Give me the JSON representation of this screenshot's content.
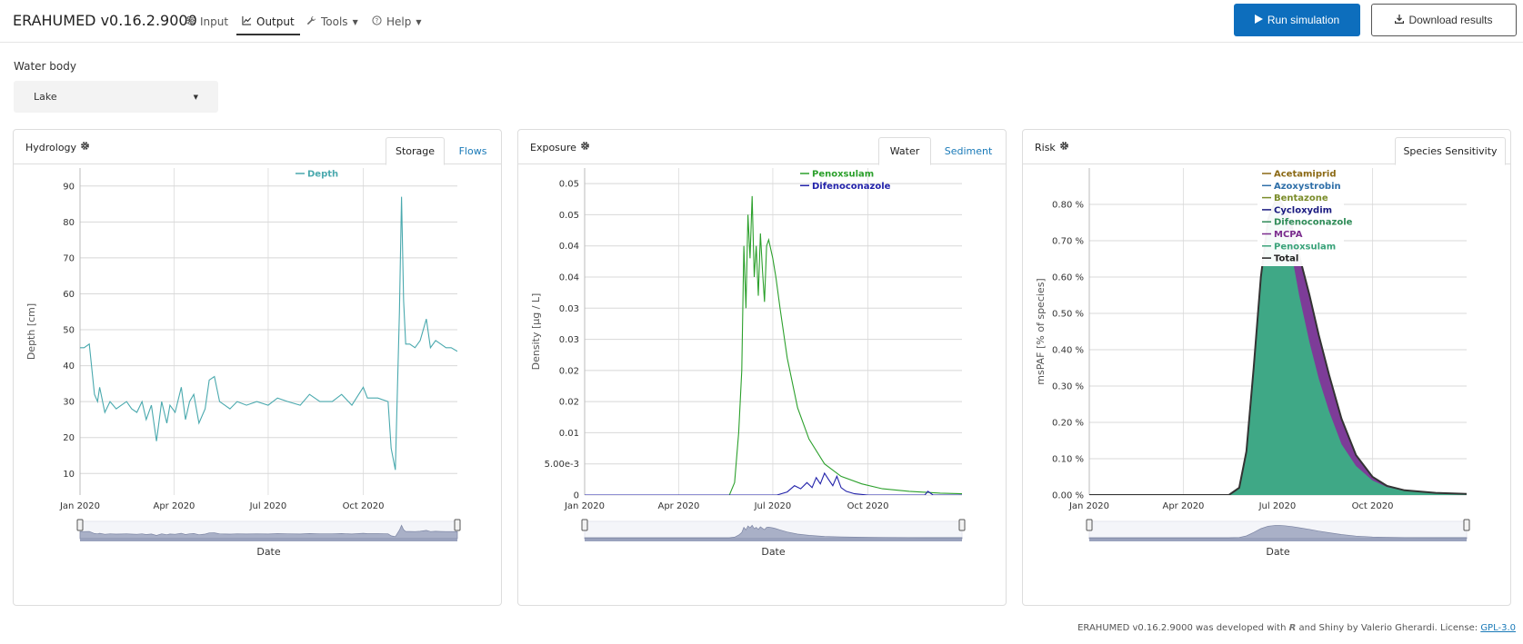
{
  "app": {
    "brand": "ERAHUMED v0.16.2.9000",
    "nav": [
      {
        "label": "Input",
        "icon": "sliders-icon"
      },
      {
        "label": "Output",
        "icon": "line-chart-icon"
      },
      {
        "label": "Tools",
        "icon": "wrench-icon"
      },
      {
        "label": "Help",
        "icon": "question-circle-icon"
      }
    ],
    "run_label": "Run simulation",
    "download_label": "Download results"
  },
  "water_body": {
    "label": "Water body",
    "value": "Lake"
  },
  "panels": {
    "hydrology": {
      "title": "Hydrology",
      "tabs": [
        "Storage",
        "Flows"
      ],
      "active_tab": "Storage"
    },
    "exposure": {
      "title": "Exposure",
      "tabs": [
        "Water",
        "Sediment"
      ],
      "active_tab": "Water"
    },
    "risk": {
      "title": "Risk",
      "tabs": [
        "Species Sensitivity"
      ],
      "active_tab": "Species Sensitivity"
    }
  },
  "chart_data": [
    {
      "type": "line",
      "xlabel": "Date",
      "ylabel": "Depth [cm]",
      "x_ticks": [
        "Jan 2020",
        "Apr 2020",
        "Jul 2020",
        "Oct 2020"
      ],
      "y_ticks": [
        10,
        20,
        30,
        40,
        50,
        60,
        70,
        80,
        90
      ],
      "xlim": [
        "2020-01-01",
        "2020-12-31"
      ],
      "ylim": [
        4,
        95
      ],
      "legend_placement": "top-center",
      "grid": true,
      "series": [
        {
          "name": "Depth",
          "color": "#4aa9ae",
          "x": [
            "2020-01-01",
            "2020-01-05",
            "2020-01-10",
            "2020-01-15",
            "2020-01-18",
            "2020-01-20",
            "2020-01-25",
            "2020-01-30",
            "2020-02-05",
            "2020-02-10",
            "2020-02-15",
            "2020-02-20",
            "2020-02-25",
            "2020-03-01",
            "2020-03-05",
            "2020-03-10",
            "2020-03-15",
            "2020-03-20",
            "2020-03-25",
            "2020-03-28",
            "2020-04-02",
            "2020-04-08",
            "2020-04-12",
            "2020-04-16",
            "2020-04-20",
            "2020-04-25",
            "2020-05-01",
            "2020-05-05",
            "2020-05-10",
            "2020-05-15",
            "2020-05-20",
            "2020-05-25",
            "2020-06-01",
            "2020-06-10",
            "2020-06-20",
            "2020-07-01",
            "2020-07-10",
            "2020-07-20",
            "2020-08-01",
            "2020-08-10",
            "2020-08-20",
            "2020-09-01",
            "2020-09-10",
            "2020-09-20",
            "2020-10-01",
            "2020-10-05",
            "2020-10-15",
            "2020-10-25",
            "2020-10-28",
            "2020-11-01",
            "2020-11-05",
            "2020-11-07",
            "2020-11-09",
            "2020-11-11",
            "2020-11-15",
            "2020-11-20",
            "2020-11-25",
            "2020-12-01",
            "2020-12-05",
            "2020-12-10",
            "2020-12-15",
            "2020-12-20",
            "2020-12-25",
            "2020-12-31"
          ],
          "y": [
            45,
            45,
            46,
            32,
            30,
            34,
            27,
            30,
            28,
            29,
            30,
            28,
            27,
            30,
            25,
            29,
            19,
            30,
            24,
            29,
            27,
            34,
            25,
            30,
            32,
            24,
            28,
            36,
            37,
            30,
            29,
            28,
            30,
            29,
            30,
            29,
            31,
            30,
            29,
            32,
            30,
            30,
            32,
            29,
            34,
            31,
            31,
            30,
            17,
            11,
            55,
            87,
            58,
            46,
            46,
            45,
            47,
            53,
            45,
            47,
            46,
            45,
            45,
            44
          ]
        }
      ]
    },
    {
      "type": "line",
      "xlabel": "Date",
      "ylabel": "Density [µg / L]",
      "x_ticks": [
        "Jan 2020",
        "Apr 2020",
        "Jul 2020",
        "Oct 2020"
      ],
      "y_ticks": [
        0,
        0.005,
        0.01,
        0.015,
        0.02,
        0.025,
        0.03,
        0.035,
        0.04,
        0.045,
        0.05
      ],
      "y_tick_labels": [
        "0",
        "5.00e-3",
        "0.01",
        "0.02",
        "0.02",
        "0.03",
        "0.03",
        "0.04",
        "0.04",
        "0.05",
        "0.05"
      ],
      "xlim": [
        "2020-01-01",
        "2020-12-31"
      ],
      "ylim": [
        0,
        0.0525
      ],
      "legend_placement": "top-right",
      "grid": true,
      "series": [
        {
          "name": "Penoxsulam",
          "color": "#2ca02c",
          "x": [
            "2020-01-01",
            "2020-05-20",
            "2020-05-25",
            "2020-05-29",
            "2020-06-01",
            "2020-06-03",
            "2020-06-05",
            "2020-06-07",
            "2020-06-09",
            "2020-06-11",
            "2020-06-13",
            "2020-06-15",
            "2020-06-17",
            "2020-06-19",
            "2020-06-21",
            "2020-06-23",
            "2020-06-25",
            "2020-06-27",
            "2020-07-01",
            "2020-07-04",
            "2020-07-08",
            "2020-07-15",
            "2020-07-25",
            "2020-08-05",
            "2020-08-20",
            "2020-09-05",
            "2020-09-25",
            "2020-10-15",
            "2020-11-10",
            "2020-12-10",
            "2020-12-31"
          ],
          "y": [
            0,
            0,
            0.002,
            0.01,
            0.02,
            0.04,
            0.03,
            0.045,
            0.038,
            0.048,
            0.035,
            0.04,
            0.032,
            0.042,
            0.036,
            0.031,
            0.04,
            0.041,
            0.038,
            0.035,
            0.03,
            0.022,
            0.014,
            0.009,
            0.005,
            0.003,
            0.0018,
            0.001,
            0.0006,
            0.0003,
            0.0002
          ]
        },
        {
          "name": "Difenoconazole",
          "color": "#2222aa",
          "x": [
            "2020-01-01",
            "2020-07-05",
            "2020-07-15",
            "2020-07-22",
            "2020-07-28",
            "2020-08-03",
            "2020-08-08",
            "2020-08-12",
            "2020-08-16",
            "2020-08-20",
            "2020-08-24",
            "2020-08-28",
            "2020-09-01",
            "2020-09-05",
            "2020-09-10",
            "2020-09-18",
            "2020-10-01",
            "2020-11-25",
            "2020-11-28",
            "2020-12-03",
            "2020-12-31"
          ],
          "y": [
            0,
            0,
            0.0005,
            0.0015,
            0.001,
            0.002,
            0.0012,
            0.0028,
            0.0018,
            0.0035,
            0.0025,
            0.0015,
            0.003,
            0.0012,
            0.0006,
            0.0002,
            0,
            0,
            0.0006,
            0,
            0
          ]
        }
      ]
    },
    {
      "type": "area",
      "xlabel": "Date",
      "ylabel": "msPAF [% of species]",
      "x_ticks": [
        "Jan 2020",
        "Apr 2020",
        "Jul 2020",
        "Oct 2020"
      ],
      "y_ticks": [
        0,
        0.1,
        0.2,
        0.3,
        0.4,
        0.5,
        0.6,
        0.7,
        0.8
      ],
      "y_tick_labels": [
        "0.00 %",
        "0.10 %",
        "0.20 %",
        "0.30 %",
        "0.40 %",
        "0.50 %",
        "0.60 %",
        "0.70 %",
        "0.80 %"
      ],
      "xlim": [
        "2020-01-01",
        "2020-12-31"
      ],
      "ylim": [
        0,
        0.9
      ],
      "legend_placement": "top-center",
      "grid": true,
      "legend": [
        {
          "name": "Acetamiprid",
          "color": "#8b6914"
        },
        {
          "name": "Azoxystrobin",
          "color": "#2f6fa8"
        },
        {
          "name": "Bentazone",
          "color": "#7a8c2a"
        },
        {
          "name": "Cycloxydim",
          "color": "#1a1a80"
        },
        {
          "name": "Difenoconazole",
          "color": "#2e8b57"
        },
        {
          "name": "MCPA",
          "color": "#7b2d8e"
        },
        {
          "name": "Penoxsulam",
          "color": "#3aa37a"
        },
        {
          "name": "Total",
          "color": "#222222"
        }
      ],
      "series": [
        {
          "name": "Penoxsulam",
          "color": "#3fa886",
          "x": [
            "2020-01-01",
            "2020-05-15",
            "2020-05-25",
            "2020-06-01",
            "2020-06-08",
            "2020-06-15",
            "2020-06-22",
            "2020-06-29",
            "2020-07-03",
            "2020-07-08",
            "2020-07-15",
            "2020-07-22",
            "2020-08-01",
            "2020-08-10",
            "2020-08-20",
            "2020-09-01",
            "2020-09-15",
            "2020-10-01",
            "2020-10-15",
            "2020-11-01",
            "2020-12-01",
            "2020-12-31"
          ],
          "y": [
            0,
            0,
            0.02,
            0.12,
            0.35,
            0.6,
            0.75,
            0.8,
            0.8,
            0.76,
            0.66,
            0.55,
            0.42,
            0.32,
            0.23,
            0.14,
            0.08,
            0.04,
            0.022,
            0.012,
            0.005,
            0.003
          ]
        },
        {
          "name": "MCPA",
          "color": "#7d3c98",
          "x": [
            "2020-01-01",
            "2020-05-15",
            "2020-05-25",
            "2020-06-01",
            "2020-06-08",
            "2020-06-15",
            "2020-06-22",
            "2020-06-29",
            "2020-07-03",
            "2020-07-08",
            "2020-07-15",
            "2020-07-22",
            "2020-08-01",
            "2020-08-10",
            "2020-08-20",
            "2020-09-01",
            "2020-09-15",
            "2020-10-01",
            "2020-10-15",
            "2020-11-01",
            "2020-12-01",
            "2020-12-31"
          ],
          "y": [
            0,
            0,
            0.02,
            0.12,
            0.35,
            0.6,
            0.76,
            0.81,
            0.81,
            0.79,
            0.74,
            0.66,
            0.55,
            0.44,
            0.33,
            0.21,
            0.11,
            0.05,
            0.025,
            0.013,
            0.006,
            0.003
          ]
        }
      ]
    }
  ],
  "footer": {
    "prefix": "ERAHUMED v0.16.2.9000 was developed with",
    "r_logo": "R",
    "mid": "and Shiny by Valerio Gherardi. License:",
    "license": "GPL-3.0"
  }
}
